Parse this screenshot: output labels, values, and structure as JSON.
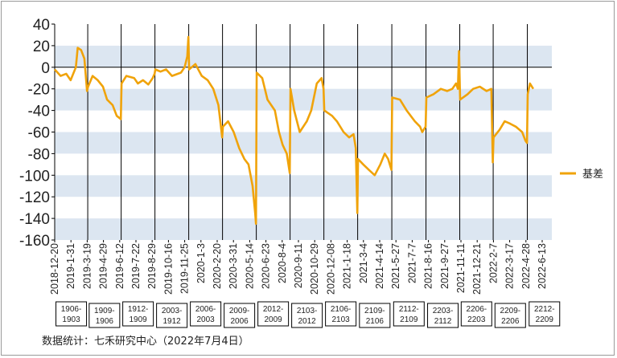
{
  "source_note": "数据统计：七禾研究中心（2022年7月4日）",
  "colors": {
    "line": "#f0a30a",
    "band": "#dce6f1",
    "axis": "#000000",
    "divider": "#000000"
  },
  "chart_data": {
    "type": "line",
    "title": "",
    "xlabel": "",
    "ylabel": "",
    "ylim": [
      -160,
      40
    ],
    "yticks": [
      40,
      20,
      0,
      -20,
      -40,
      -60,
      -80,
      -100,
      -120,
      -140,
      -160
    ],
    "band_ranges": [
      [
        0,
        20
      ],
      [
        -40,
        -20
      ],
      [
        -80,
        -60
      ],
      [
        -120,
        -100
      ],
      [
        -160,
        -140
      ]
    ],
    "xlim": [
      "2018-12-20",
      "2022-08-20"
    ],
    "x_tick_labels": [
      "2018-12-20",
      "2019-1-31",
      "2019-3-19",
      "2019-4-29",
      "2019-6-12",
      "2019-7-22",
      "2019-8-29",
      "2019-10-16",
      "2019-11-25",
      "2020-1-3",
      "2020-2-20",
      "2020-3-31",
      "2020-5-14",
      "2020-6-23",
      "2020-8-4",
      "2020-9-11",
      "2020-10-29",
      "2020-12-08",
      "2021-1-18",
      "2021-3-4",
      "2021-4-14",
      "2021-5-27",
      "2021-7-7",
      "2021-8-16",
      "2021-9-27",
      "2021-11-11",
      "2021-12-21",
      "2022-2-7",
      "2022-3-17",
      "2022-4-28",
      "2022-6-13"
    ],
    "legend": {
      "position": "right",
      "entries": [
        "基差"
      ]
    },
    "contract_windows": [
      {
        "label": "1906-1903",
        "start": "2018-12-20",
        "end": "2019-3-19"
      },
      {
        "label": "1909-1906",
        "start": "2019-3-19",
        "end": "2019-6-17"
      },
      {
        "label": "1912-1909",
        "start": "2019-6-17",
        "end": "2019-9-16"
      },
      {
        "label": "2003-1912",
        "start": "2019-9-16",
        "end": "2019-12-16"
      },
      {
        "label": "2006-2003",
        "start": "2019-12-16",
        "end": "2020-3-16"
      },
      {
        "label": "2009-2006",
        "start": "2020-3-16",
        "end": "2020-6-15"
      },
      {
        "label": "2012-2009",
        "start": "2020-6-15",
        "end": "2020-9-14"
      },
      {
        "label": "2103-2012",
        "start": "2020-9-14",
        "end": "2020-12-14"
      },
      {
        "label": "2106-2103",
        "start": "2020-12-14",
        "end": "2021-3-15"
      },
      {
        "label": "2109-2106",
        "start": "2021-3-15",
        "end": "2021-6-15"
      },
      {
        "label": "2112-2109",
        "start": "2021-6-15",
        "end": "2021-9-15"
      },
      {
        "label": "2203-2112",
        "start": "2021-9-15",
        "end": "2021-12-15"
      },
      {
        "label": "2206-2203",
        "start": "2021-12-15",
        "end": "2022-3-15"
      },
      {
        "label": "2209-2206",
        "start": "2022-3-15",
        "end": "2022-6-15"
      },
      {
        "label": "2212-2209",
        "start": "2022-6-15",
        "end": "2022-9-15"
      }
    ],
    "series": [
      {
        "name": "基差",
        "points": [
          [
            "2018-12-20",
            -2
          ],
          [
            "2019-1-5",
            -8
          ],
          [
            "2019-1-20",
            -6
          ],
          [
            "2019-2-1",
            -12
          ],
          [
            "2019-2-15",
            0
          ],
          [
            "2019-2-20",
            18
          ],
          [
            "2019-3-1",
            16
          ],
          [
            "2019-3-10",
            8
          ],
          [
            "2019-3-17",
            -22
          ],
          [
            "2019-3-20",
            -18
          ],
          [
            "2019-4-1",
            -8
          ],
          [
            "2019-4-15",
            -12
          ],
          [
            "2019-4-29",
            -18
          ],
          [
            "2019-5-10",
            -30
          ],
          [
            "2019-5-25",
            -35
          ],
          [
            "2019-6-5",
            -45
          ],
          [
            "2019-6-16",
            -48
          ],
          [
            "2019-6-18",
            -15
          ],
          [
            "2019-7-1",
            -8
          ],
          [
            "2019-7-22",
            -10
          ],
          [
            "2019-8-1",
            -15
          ],
          [
            "2019-8-15",
            -12
          ],
          [
            "2019-8-29",
            -16
          ],
          [
            "2019-9-10",
            -10
          ],
          [
            "2019-9-15",
            -6
          ],
          [
            "2019-9-17",
            -2
          ],
          [
            "2019-10-1",
            -4
          ],
          [
            "2019-10-16",
            -2
          ],
          [
            "2019-11-1",
            -8
          ],
          [
            "2019-11-25",
            -5
          ],
          [
            "2019-12-5",
            0
          ],
          [
            "2019-12-12",
            10
          ],
          [
            "2019-12-15",
            28
          ],
          [
            "2019-12-17",
            -2
          ],
          [
            "2020-1-3",
            3
          ],
          [
            "2020-1-20",
            -8
          ],
          [
            "2020-2-5",
            -12
          ],
          [
            "2020-2-20",
            -20
          ],
          [
            "2020-3-5",
            -35
          ],
          [
            "2020-3-15",
            -65
          ],
          [
            "2020-3-17",
            -55
          ],
          [
            "2020-3-31",
            -50
          ],
          [
            "2020-4-15",
            -60
          ],
          [
            "2020-4-30",
            -75
          ],
          [
            "2020-5-14",
            -85
          ],
          [
            "2020-5-25",
            -90
          ],
          [
            "2020-6-5",
            -110
          ],
          [
            "2020-6-12",
            -135
          ],
          [
            "2020-6-14",
            -145
          ],
          [
            "2020-6-16",
            -5
          ],
          [
            "2020-7-1",
            -10
          ],
          [
            "2020-7-15",
            -30
          ],
          [
            "2020-8-4",
            -40
          ],
          [
            "2020-8-15",
            -60
          ],
          [
            "2020-8-25",
            -72
          ],
          [
            "2020-9-5",
            -80
          ],
          [
            "2020-9-13",
            -98
          ],
          [
            "2020-9-15",
            -20
          ],
          [
            "2020-9-25",
            -40
          ],
          [
            "2020-10-10",
            -60
          ],
          [
            "2020-10-29",
            -50
          ],
          [
            "2020-11-10",
            -40
          ],
          [
            "2020-11-25",
            -15
          ],
          [
            "2020-12-8",
            -10
          ],
          [
            "2020-12-13",
            -20
          ],
          [
            "2020-12-15",
            -40
          ],
          [
            "2021-1-5",
            -45
          ],
          [
            "2021-1-18",
            -50
          ],
          [
            "2021-2-5",
            -60
          ],
          [
            "2021-2-20",
            -65
          ],
          [
            "2021-3-4",
            -62
          ],
          [
            "2021-3-10",
            -75
          ],
          [
            "2021-3-14",
            -135
          ],
          [
            "2021-3-16",
            -85
          ],
          [
            "2021-3-30",
            -90
          ],
          [
            "2021-4-14",
            -95
          ],
          [
            "2021-4-30",
            -100
          ],
          [
            "2021-5-15",
            -90
          ],
          [
            "2021-5-27",
            -80
          ],
          [
            "2021-6-5",
            -85
          ],
          [
            "2021-6-14",
            -95
          ],
          [
            "2021-6-16",
            -28
          ],
          [
            "2021-7-7",
            -30
          ],
          [
            "2021-7-25",
            -40
          ],
          [
            "2021-8-16",
            -50
          ],
          [
            "2021-8-30",
            -55
          ],
          [
            "2021-9-5",
            -60
          ],
          [
            "2021-9-14",
            -55
          ],
          [
            "2021-9-16",
            -28
          ],
          [
            "2021-10-5",
            -25
          ],
          [
            "2021-10-25",
            -20
          ],
          [
            "2021-11-11",
            -22
          ],
          [
            "2021-11-25",
            -20
          ],
          [
            "2021-12-5",
            -15
          ],
          [
            "2021-12-10",
            -20
          ],
          [
            "2021-12-13",
            15
          ],
          [
            "2021-12-16",
            -30
          ],
          [
            "2022-1-5",
            -25
          ],
          [
            "2022-1-20",
            -20
          ],
          [
            "2022-2-7",
            -18
          ],
          [
            "2022-2-25",
            -22
          ],
          [
            "2022-3-10",
            -20
          ],
          [
            "2022-3-14",
            -88
          ],
          [
            "2022-3-16",
            -65
          ],
          [
            "2022-4-1",
            -58
          ],
          [
            "2022-4-15",
            -50
          ],
          [
            "2022-4-28",
            -52
          ],
          [
            "2022-5-15",
            -55
          ],
          [
            "2022-6-1",
            -60
          ],
          [
            "2022-6-10",
            -68
          ],
          [
            "2022-6-14",
            -70
          ],
          [
            "2022-6-16",
            -25
          ],
          [
            "2022-6-22",
            -15
          ],
          [
            "2022-7-1",
            -20
          ]
        ]
      }
    ]
  }
}
